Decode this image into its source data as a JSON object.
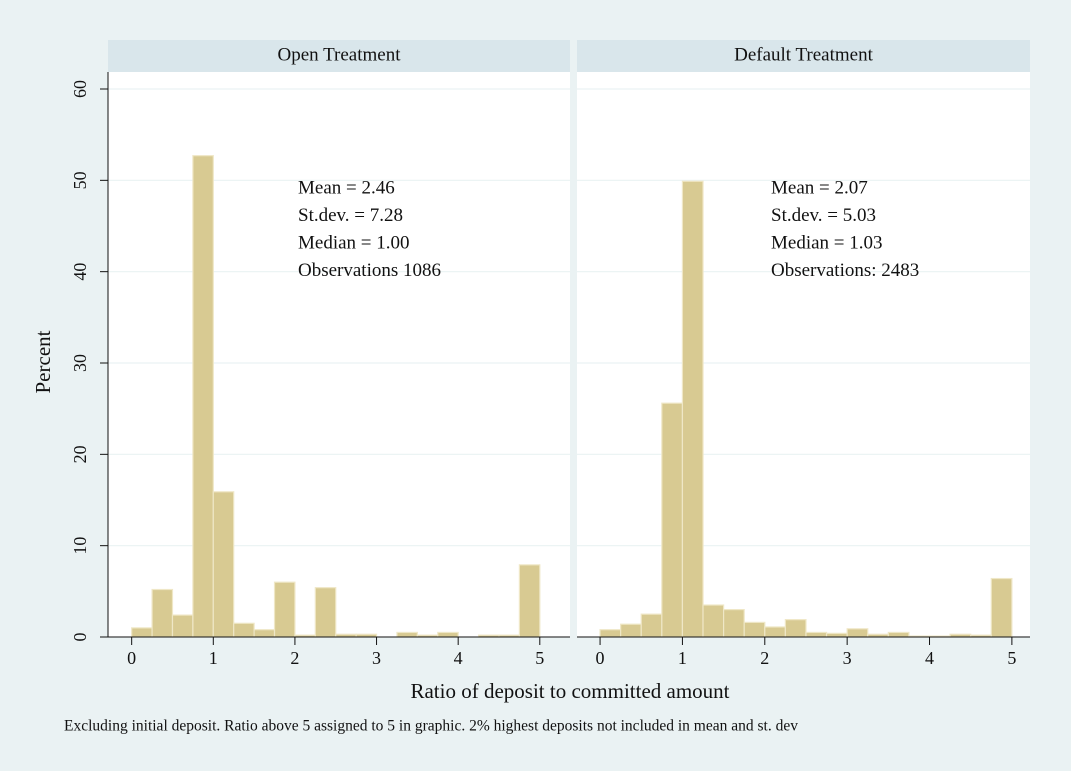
{
  "chart_data": [
    {
      "type": "histogram",
      "title": "Open Treatment",
      "bins": [
        0,
        0.25,
        0.5,
        0.75,
        1,
        1.25,
        1.5,
        1.75,
        2,
        2.25,
        2.5,
        2.75,
        3,
        3.25,
        3.5,
        3.75,
        4,
        4.25,
        4.5,
        4.75,
        5
      ],
      "values": [
        1.0,
        5.2,
        2.4,
        52.7,
        15.9,
        1.5,
        0.8,
        6.0,
        0.2,
        5.4,
        0.3,
        0.3,
        0,
        0.5,
        0.2,
        0.5,
        0,
        0.2,
        0.2,
        7.9
      ],
      "color": "#d8ca92",
      "annotations": [
        "Mean = 2.46",
        "St.dev. = 7.28",
        "Median = 1.00",
        "Observations 1086"
      ],
      "xlim": [
        -0.29,
        5.37
      ],
      "xticks": [
        0,
        1,
        2,
        3,
        4,
        5
      ],
      "ylim": [
        0,
        60
      ],
      "yticks": [
        0,
        10,
        20,
        30,
        40,
        50,
        60
      ],
      "grid": true
    },
    {
      "type": "histogram",
      "title": "Default Treatment",
      "bins": [
        0,
        0.25,
        0.5,
        0.75,
        1,
        1.25,
        1.5,
        1.75,
        2,
        2.25,
        2.5,
        2.75,
        3,
        3.25,
        3.5,
        3.75,
        4,
        4.25,
        4.5,
        4.75,
        5
      ],
      "values": [
        0.8,
        1.4,
        2.5,
        25.6,
        49.9,
        3.5,
        3.0,
        1.6,
        1.1,
        1.9,
        0.5,
        0.4,
        0.9,
        0.3,
        0.5,
        0.1,
        0.1,
        0.3,
        0.2,
        6.4
      ],
      "color": "#d8ca92",
      "annotations": [
        "Mean = 2.07",
        "St.dev. = 5.03",
        "Median = 1.03",
        "Observations: 2483"
      ],
      "xlim": [
        -0.28,
        5.22
      ],
      "xticks": [
        0,
        1,
        2,
        3,
        4,
        5
      ],
      "ylim": [
        0,
        60
      ],
      "yticks": [
        0,
        10,
        20,
        30,
        40,
        50,
        60
      ],
      "grid": true
    }
  ],
  "y_label": "Percent",
  "x_label": "Ratio of deposit to committed amount",
  "note": "Excluding initial deposit. Ratio above 5 assigned to 5 in graphic. 2% highest deposits not included in mean and st. dev"
}
